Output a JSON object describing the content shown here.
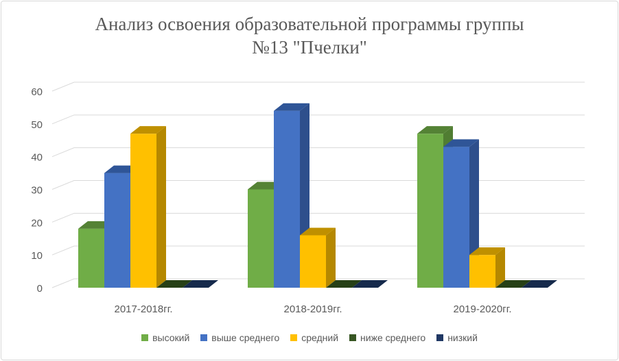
{
  "chart_data": {
    "type": "bar",
    "title_line1": "Анализ освоения образовательной программы группы",
    "title_line2": "№13 \"Пчелки\"",
    "categories": [
      "2017-2018гг.",
      "2018-2019гг.",
      "2019-2020гг."
    ],
    "series": [
      {
        "name": "высокий",
        "values": [
          18,
          30,
          47
        ]
      },
      {
        "name": "выше среднего",
        "values": [
          35,
          54,
          43
        ]
      },
      {
        "name": "средний",
        "values": [
          47,
          16,
          10
        ]
      },
      {
        "name": "ниже среднего",
        "values": [
          0,
          0,
          0
        ]
      },
      {
        "name": "низкий",
        "values": [
          0,
          0,
          0
        ]
      }
    ],
    "yticks": [
      0,
      10,
      20,
      30,
      40,
      50,
      60
    ],
    "ylim": [
      0,
      60
    ],
    "grid": true,
    "legend_position": "bottom",
    "colors": {
      "front": [
        "#70ad47",
        "#4472c4",
        "#ffc000",
        "#375623",
        "#203864"
      ],
      "top": [
        "#548235",
        "#2f5597",
        "#bf9000",
        "#264016",
        "#162a4c"
      ],
      "side": [
        "#507d32",
        "#2e4f8c",
        "#b58800",
        "#223a14",
        "#142645"
      ]
    }
  }
}
